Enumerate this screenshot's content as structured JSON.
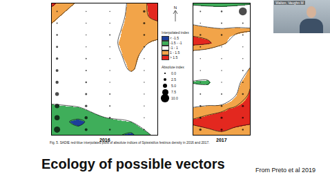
{
  "slide": {
    "title": "Ecology of possible vectors",
    "source": "From Preto et al 2019",
    "caption": "Fig. 5. SADIE red-blue interpolated plots of absolute indices of Spissistilus festinus density in 2016 and 2017.",
    "presenter": "Walton, Vaughn M",
    "compass": "N",
    "legend": {
      "interpolated_title": "Interpolated index",
      "levels": [
        -1.5,
        -1,
        1,
        1.5
      ],
      "interpolated_classes": [
        {
          "label": "< -1.5",
          "color": "#1d3f9a"
        },
        {
          "label": "-1.5 - -1",
          "color": "#3fae5a"
        },
        {
          "label": "-1 - 1",
          "color": "#ffffff"
        },
        {
          "label": "1 - 1.5",
          "color": "#f2a449"
        },
        {
          "label": "> 1.5",
          "color": "#e3281f"
        }
      ],
      "absolute_title": "Absolute index",
      "absolute_sizes": [
        {
          "value": 0,
          "label": "0.0"
        },
        {
          "value": 2.5,
          "label": "2.5"
        },
        {
          "value": 5,
          "label": "5.0"
        },
        {
          "value": 7.5,
          "label": "7.5"
        },
        {
          "value": 10,
          "label": "10.0"
        }
      ]
    }
  },
  "chart_data": [
    {
      "type": "contour",
      "title": "2016",
      "xlim": [
        0,
        4
      ],
      "ylim": [
        0,
        10
      ],
      "tick_labels": false,
      "x": [
        0,
        1,
        2,
        3,
        4
      ],
      "y": [
        0,
        1,
        2,
        3,
        4,
        5,
        6,
        7,
        8,
        9,
        10
      ],
      "z": [
        [
          -1.1,
          -1.3,
          -1.3,
          -1.6,
          -0.8
        ],
        [
          -1.3,
          -1.6,
          -1.2,
          -1.0,
          -0.3
        ],
        [
          -1.2,
          -1.1,
          -0.6,
          -0.2,
          0
        ],
        [
          -0.6,
          -0.3,
          0,
          0,
          0
        ],
        [
          0,
          0,
          0,
          0.5,
          0
        ],
        [
          0,
          0,
          0.3,
          1.1,
          0.3
        ],
        [
          0,
          0,
          0.6,
          1.2,
          0.5
        ],
        [
          0.3,
          0,
          0.8,
          1.2,
          0.9
        ],
        [
          0.8,
          0.2,
          0.5,
          1.3,
          1.3
        ],
        [
          1.2,
          0.5,
          0,
          1.3,
          1.6
        ],
        [
          1.6,
          0.9,
          0,
          1.2,
          1.7
        ]
      ],
      "points": {
        "x": [
          0.2,
          0.2,
          0.2,
          0.2,
          0.2,
          0.2,
          0.2,
          0.2,
          0.2,
          0.2,
          0.2,
          1.3,
          1.3,
          1.3,
          1.3,
          1.3,
          1.3,
          1.3,
          1.3,
          1.3,
          1.3,
          1.3,
          2.2,
          2.2,
          2.2,
          2.2,
          2.2,
          2.2,
          2.2,
          2.2,
          2.2,
          2.2,
          2.2,
          3.5,
          3.5,
          3.5,
          3.5,
          3.5,
          3.5,
          3.5,
          3.5,
          3.5,
          3.5,
          3.5
        ],
        "y": [
          0.4,
          1.3,
          2.2,
          3.1,
          4.0,
          4.9,
          5.8,
          6.7,
          7.6,
          8.5,
          9.4,
          0.4,
          1.3,
          2.2,
          3.1,
          4.0,
          4.9,
          5.8,
          6.7,
          7.6,
          8.5,
          9.4,
          0.4,
          1.3,
          2.2,
          3.1,
          4.0,
          4.9,
          5.8,
          6.7,
          7.6,
          8.5,
          9.4,
          0.4,
          1.3,
          2.2,
          3.1,
          4.0,
          4.9,
          5.8,
          6.7,
          7.6,
          8.5,
          9.4
        ],
        "values": [
          7.5,
          6,
          5,
          4,
          3,
          2.5,
          2,
          1.5,
          1,
          0.5,
          0.5,
          2.5,
          3,
          2,
          1.5,
          1,
          0.5,
          0.5,
          0,
          0,
          0,
          0,
          1,
          1,
          0.5,
          0.5,
          0,
          0,
          0,
          0,
          0.5,
          0,
          0,
          0.5,
          0,
          0,
          0,
          0,
          0,
          0,
          0.5,
          1,
          1.5,
          2
        ]
      }
    },
    {
      "type": "contour",
      "title": "2017",
      "xlim": [
        0,
        4
      ],
      "ylim": [
        0,
        10
      ],
      "tick_labels": false,
      "x": [
        0,
        1,
        2,
        3,
        4
      ],
      "y": [
        0,
        1,
        2,
        3,
        4,
        5,
        6,
        7,
        8,
        9,
        10
      ],
      "z": [
        [
          1.2,
          1.3,
          1.4,
          1.2,
          1.1
        ],
        [
          1.6,
          1.7,
          1.8,
          1.7,
          1.6
        ],
        [
          1.1,
          1.3,
          1.4,
          1.6,
          1.8
        ],
        [
          0,
          0,
          0,
          1.0,
          1.6
        ],
        [
          -1.1,
          -1.2,
          0,
          0.8,
          1.4
        ],
        [
          0,
          0,
          0,
          0.3,
          1.1
        ],
        [
          0.5,
          0.3,
          0,
          0,
          0.2
        ],
        [
          1.7,
          1.6,
          1.2,
          0.6,
          0.3
        ],
        [
          1.3,
          1.2,
          1.1,
          1.2,
          1.1
        ],
        [
          0.5,
          0.2,
          0,
          0,
          0.3
        ],
        [
          -1.2,
          -1.3,
          -1.3,
          -1.2,
          -1.1
        ]
      ],
      "points": {
        "x": [
          0.5,
          0.5,
          0.5,
          0.5,
          0.5,
          0.5,
          0.5,
          0.5,
          0.5,
          0.5,
          0.5,
          2.0,
          2.0,
          2.0,
          2.0,
          2.0,
          2.0,
          2.0,
          2.0,
          2.0,
          2.0,
          2.0,
          3.5,
          3.5,
          3.5,
          3.5,
          3.5,
          3.5,
          3.5,
          3.5,
          3.5,
          3.5,
          3.5
        ],
        "y": [
          0.4,
          1.3,
          2.2,
          3.1,
          4.0,
          4.9,
          5.8,
          6.7,
          7.6,
          8.5,
          9.4,
          0.4,
          1.3,
          2.2,
          3.1,
          4.0,
          4.9,
          5.8,
          6.7,
          7.6,
          8.5,
          9.4,
          0.4,
          1.3,
          2.2,
          3.1,
          4.0,
          4.9,
          5.8,
          6.7,
          7.6,
          8.5,
          9.4
        ],
        "values": [
          2,
          1.5,
          1,
          0.5,
          0,
          0,
          0,
          0.5,
          1,
          0,
          0.5,
          1.5,
          1.5,
          1,
          0.5,
          0,
          0,
          0,
          0,
          1,
          0.5,
          1,
          1,
          1,
          1.5,
          1,
          0.5,
          0.5,
          0,
          0,
          0.5,
          0.5,
          10
        ]
      }
    }
  ]
}
